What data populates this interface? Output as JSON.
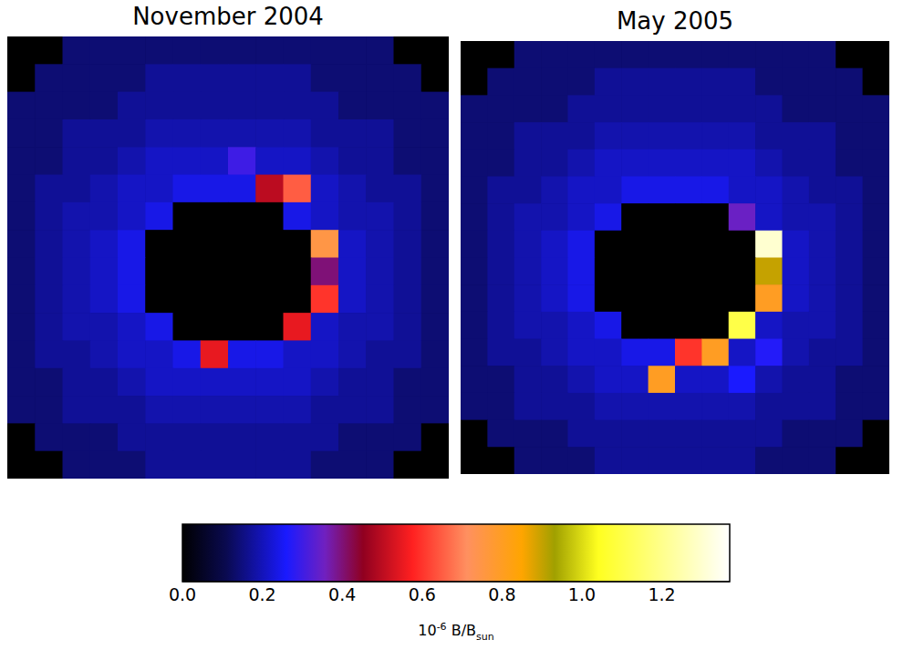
{
  "chart_data": [
    {
      "type": "heatmap",
      "title": "November 2004",
      "tick_labels": false,
      "cells": [
        [
          0,
          0,
          0.14,
          0.14,
          0.14,
          0.14,
          0.14,
          0.14,
          0.14,
          0.14,
          0.14,
          0.14,
          0.14,
          0.14,
          0,
          0
        ],
        [
          0,
          0.14,
          0.14,
          0.14,
          0.14,
          0.17,
          0.17,
          0.17,
          0.17,
          0.17,
          0.17,
          0.14,
          0.14,
          0.14,
          0.14,
          0
        ],
        [
          0.14,
          0.14,
          0.14,
          0.14,
          0.17,
          0.17,
          0.17,
          0.17,
          0.17,
          0.17,
          0.17,
          0.17,
          0.14,
          0.14,
          0.14,
          0.14
        ],
        [
          0.14,
          0.14,
          0.17,
          0.17,
          0.17,
          0.19,
          0.19,
          0.19,
          0.19,
          0.19,
          0.19,
          0.17,
          0.17,
          0.17,
          0.14,
          0.14
        ],
        [
          0.14,
          0.14,
          0.17,
          0.17,
          0.19,
          0.21,
          0.21,
          0.21,
          0.3,
          0.21,
          0.21,
          0.19,
          0.17,
          0.17,
          0.14,
          0.14
        ],
        [
          0.14,
          0.17,
          0.17,
          0.19,
          0.21,
          0.21,
          0.24,
          0.24,
          0.24,
          0.5,
          0.65,
          0.21,
          0.19,
          0.17,
          0.17,
          0.14
        ],
        [
          0.14,
          0.17,
          0.19,
          0.19,
          0.21,
          0.24,
          0,
          0,
          0,
          0,
          0.24,
          0.21,
          0.19,
          0.19,
          0.17,
          0.14
        ],
        [
          0.14,
          0.17,
          0.19,
          0.21,
          0.24,
          0,
          0,
          0,
          0,
          0,
          0,
          0.75,
          0.21,
          0.19,
          0.17,
          0.14
        ],
        [
          0.14,
          0.17,
          0.19,
          0.21,
          0.24,
          0,
          0,
          0,
          0,
          0,
          0,
          0.4,
          0.21,
          0.19,
          0.17,
          0.14
        ],
        [
          0.14,
          0.17,
          0.19,
          0.21,
          0.24,
          0,
          0,
          0,
          0,
          0,
          0,
          0.6,
          0.21,
          0.19,
          0.17,
          0.14
        ],
        [
          0.14,
          0.17,
          0.19,
          0.19,
          0.21,
          0.24,
          0,
          0,
          0,
          0,
          0.55,
          0.21,
          0.19,
          0.19,
          0.17,
          0.14
        ],
        [
          0.14,
          0.17,
          0.17,
          0.19,
          0.21,
          0.21,
          0.24,
          0.55,
          0.24,
          0.24,
          0.21,
          0.21,
          0.19,
          0.17,
          0.17,
          0.14
        ],
        [
          0.14,
          0.14,
          0.17,
          0.17,
          0.19,
          0.21,
          0.21,
          0.21,
          0.21,
          0.21,
          0.21,
          0.19,
          0.17,
          0.17,
          0.14,
          0.14
        ],
        [
          0.14,
          0.14,
          0.17,
          0.17,
          0.17,
          0.19,
          0.19,
          0.19,
          0.19,
          0.19,
          0.19,
          0.17,
          0.17,
          0.17,
          0.14,
          0.14
        ],
        [
          0,
          0.14,
          0.14,
          0.14,
          0.17,
          0.17,
          0.17,
          0.17,
          0.17,
          0.17,
          0.17,
          0.17,
          0.14,
          0.14,
          0.14,
          0
        ],
        [
          0,
          0,
          0.14,
          0.14,
          0.14,
          0.17,
          0.17,
          0.17,
          0.17,
          0.17,
          0.17,
          0.14,
          0.14,
          0.14,
          0,
          0
        ]
      ]
    },
    {
      "type": "heatmap",
      "title": "May 2005",
      "tick_labels": false,
      "cells": [
        [
          0,
          0,
          0.14,
          0.14,
          0.14,
          0.14,
          0.14,
          0.14,
          0.14,
          0.14,
          0.14,
          0.14,
          0.14,
          0.14,
          0,
          0
        ],
        [
          0,
          0.14,
          0.14,
          0.14,
          0.14,
          0.17,
          0.17,
          0.17,
          0.17,
          0.17,
          0.17,
          0.14,
          0.14,
          0.14,
          0.14,
          0
        ],
        [
          0.14,
          0.14,
          0.14,
          0.14,
          0.17,
          0.17,
          0.17,
          0.17,
          0.17,
          0.17,
          0.17,
          0.17,
          0.14,
          0.14,
          0.14,
          0.14
        ],
        [
          0.14,
          0.14,
          0.17,
          0.17,
          0.17,
          0.19,
          0.19,
          0.19,
          0.19,
          0.19,
          0.19,
          0.17,
          0.17,
          0.17,
          0.14,
          0.14
        ],
        [
          0.14,
          0.14,
          0.17,
          0.17,
          0.19,
          0.21,
          0.21,
          0.21,
          0.21,
          0.21,
          0.21,
          0.19,
          0.17,
          0.17,
          0.14,
          0.14
        ],
        [
          0.14,
          0.17,
          0.17,
          0.19,
          0.21,
          0.21,
          0.24,
          0.24,
          0.24,
          0.24,
          0.21,
          0.21,
          0.19,
          0.17,
          0.17,
          0.14
        ],
        [
          0.14,
          0.17,
          0.19,
          0.19,
          0.21,
          0.24,
          0,
          0,
          0,
          0,
          0.35,
          0.21,
          0.19,
          0.19,
          0.17,
          0.14
        ],
        [
          0.14,
          0.17,
          0.19,
          0.21,
          0.24,
          0,
          0,
          0,
          0,
          0,
          0,
          1.3,
          0.21,
          0.19,
          0.17,
          0.14
        ],
        [
          0.14,
          0.17,
          0.19,
          0.21,
          0.24,
          0,
          0,
          0,
          0,
          0,
          0,
          0.9,
          0.21,
          0.19,
          0.17,
          0.14
        ],
        [
          0.14,
          0.17,
          0.19,
          0.21,
          0.24,
          0,
          0,
          0,
          0,
          0,
          0,
          0.8,
          0.21,
          0.19,
          0.17,
          0.14
        ],
        [
          0.14,
          0.17,
          0.19,
          0.19,
          0.21,
          0.24,
          0,
          0,
          0,
          0,
          1.1,
          0.21,
          0.19,
          0.19,
          0.17,
          0.14
        ],
        [
          0.14,
          0.17,
          0.17,
          0.19,
          0.21,
          0.21,
          0.24,
          0.24,
          0.6,
          0.8,
          0.21,
          0.27,
          0.19,
          0.17,
          0.17,
          0.14
        ],
        [
          0.14,
          0.14,
          0.17,
          0.17,
          0.19,
          0.21,
          0.21,
          0.8,
          0.21,
          0.21,
          0.26,
          0.19,
          0.17,
          0.17,
          0.14,
          0.14
        ],
        [
          0.14,
          0.14,
          0.17,
          0.17,
          0.17,
          0.19,
          0.19,
          0.19,
          0.19,
          0.19,
          0.19,
          0.17,
          0.17,
          0.17,
          0.14,
          0.14
        ],
        [
          0,
          0.14,
          0.14,
          0.14,
          0.17,
          0.17,
          0.17,
          0.17,
          0.17,
          0.17,
          0.17,
          0.17,
          0.14,
          0.14,
          0.14,
          0
        ],
        [
          0,
          0,
          0.14,
          0.14,
          0.14,
          0.17,
          0.17,
          0.17,
          0.17,
          0.17,
          0.17,
          0.14,
          0.14,
          0.14,
          0,
          0
        ]
      ]
    }
  ],
  "colorbar": {
    "range": [
      0,
      1.37
    ],
    "ticks": [
      {
        "value": 0,
        "label": "0.0"
      },
      0.2,
      0.4,
      0.6,
      0.8,
      {
        "value": 1,
        "label": "1.0"
      },
      1.2
    ],
    "label": {
      "base": "10",
      "exponent": "-6",
      "text": " B/B",
      "subscript": "sun"
    }
  }
}
